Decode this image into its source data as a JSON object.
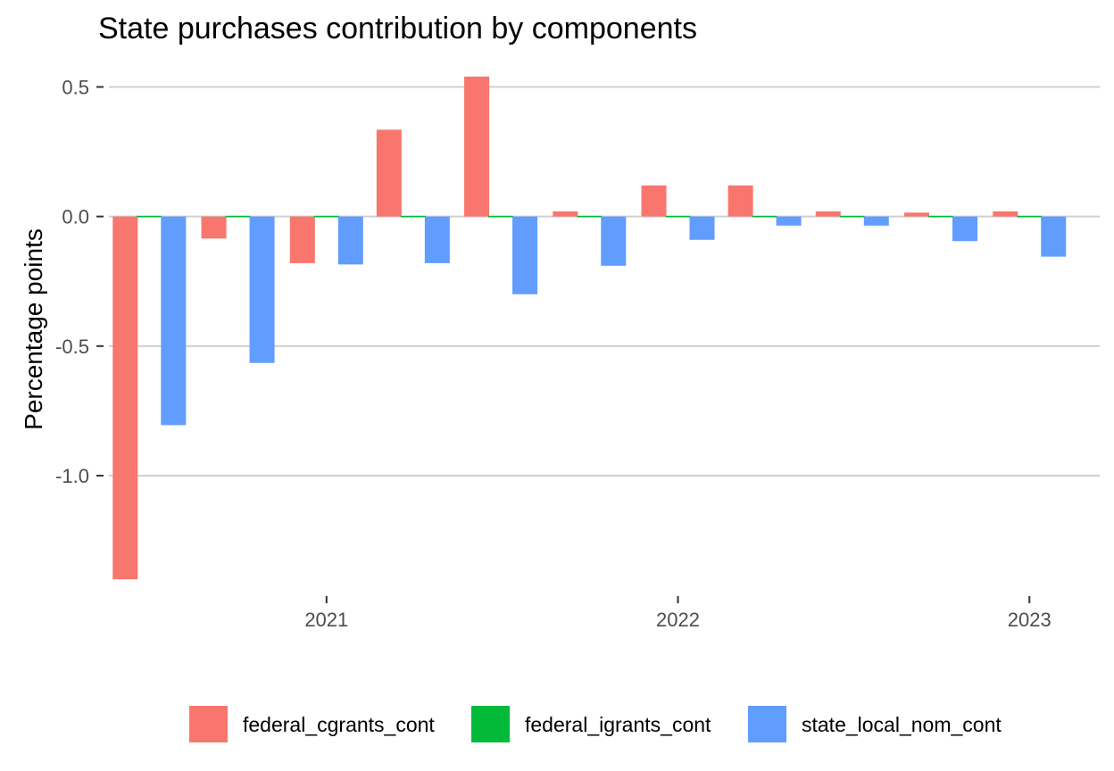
{
  "chart_data": {
    "type": "bar",
    "title": "State purchases contribution by components",
    "xlabel": "",
    "ylabel": "Percentage points",
    "ylim": [
      -1.42,
      0.56
    ],
    "yticks": [
      0.5,
      0.0,
      -0.5,
      -1.0
    ],
    "ytick_labels": [
      "0.5",
      "0.0",
      "-0.5",
      "-1.0"
    ],
    "xticks": [
      {
        "label": "2021",
        "date": "2021-01-01"
      },
      {
        "label": "2022",
        "date": "2022-01-01"
      },
      {
        "label": "2023",
        "date": "2023-01-01"
      }
    ],
    "x_range": [
      "2020-05-20",
      "2023-03-15"
    ],
    "categories": [
      "2020-07-01",
      "2020-10-01",
      "2021-01-01",
      "2021-04-01",
      "2021-07-01",
      "2021-10-01",
      "2022-01-01",
      "2022-04-01",
      "2022-07-01",
      "2022-10-01",
      "2023-01-01"
    ],
    "series": [
      {
        "name": "federal_cgrants_cont",
        "color": "#F8766D",
        "values": [
          -1.4,
          -0.085,
          -0.18,
          0.335,
          0.54,
          0.02,
          0.12,
          0.12,
          0.02,
          0.015,
          0.02
        ]
      },
      {
        "name": "federal_igrants_cont",
        "color": "#00BA38",
        "values": [
          0.0,
          -0.005,
          0.0,
          0.003,
          0.004,
          0.003,
          0.0,
          0.0,
          0.0,
          0.0,
          0.003
        ]
      },
      {
        "name": "state_local_nom_cont",
        "color": "#619CFF",
        "values": [
          -0.805,
          -0.565,
          -0.185,
          -0.18,
          -0.3,
          -0.19,
          -0.09,
          -0.035,
          -0.035,
          -0.095,
          -0.155
        ]
      }
    ],
    "legend_position": "bottom",
    "grid": {
      "major_y": true,
      "major_x": false
    }
  }
}
